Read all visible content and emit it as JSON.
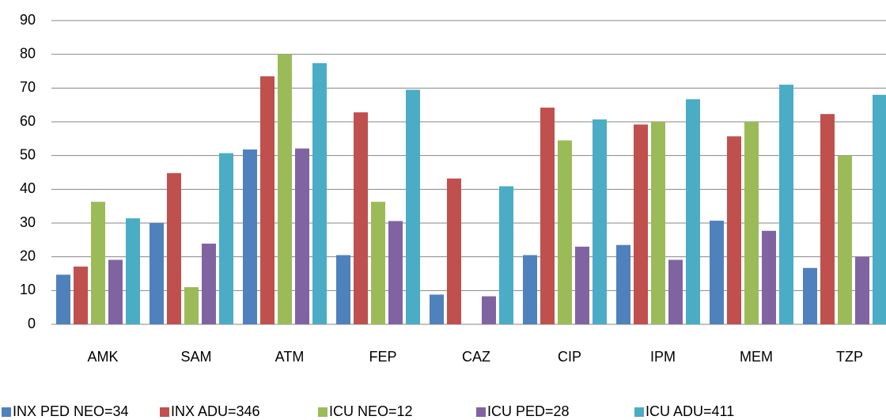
{
  "chart_data": {
    "type": "bar",
    "categories": [
      "AMK",
      "SAM",
      "ATM",
      "FEP",
      "CAZ",
      "CIP",
      "IPM",
      "MEM",
      "TZP"
    ],
    "series": [
      {
        "name": "INX PED NEO=34",
        "color": "#4f81bd",
        "values": [
          14.7,
          30,
          51.8,
          20.5,
          8.8,
          20.5,
          23.5,
          30.7,
          16.7
        ]
      },
      {
        "name": "INX ADU=346",
        "color": "#c0504d",
        "values": [
          17.1,
          44.8,
          73.5,
          62.8,
          43.2,
          64.2,
          59.2,
          55.7,
          62.3
        ]
      },
      {
        "name": "ICU NEO=12",
        "color": "#9bbb59",
        "values": [
          36.3,
          11,
          80,
          36.3,
          0,
          54.5,
          60,
          60,
          50
        ]
      },
      {
        "name": "ICU PED=28",
        "color": "#8064a2",
        "values": [
          19.1,
          23.9,
          52.1,
          30.6,
          8.3,
          23,
          19.1,
          27.7,
          20
        ]
      },
      {
        "name": "ICU ADU=411",
        "color": "#4bacc6",
        "values": [
          31.4,
          50.7,
          77.4,
          69.5,
          40.9,
          60.7,
          66.7,
          71,
          68
        ]
      }
    ],
    "ylim": [
      0,
      90
    ],
    "yticks": [
      0,
      10,
      20,
      30,
      40,
      50,
      60,
      70,
      80,
      90
    ],
    "grid": true,
    "legend": "bottom"
  }
}
